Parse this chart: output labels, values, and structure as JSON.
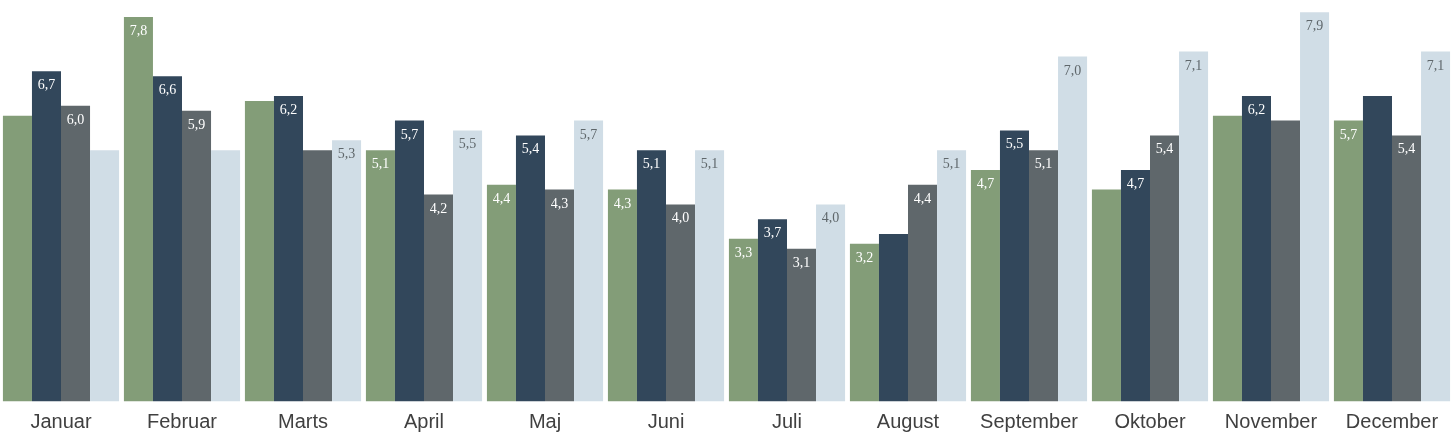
{
  "chart_data": {
    "type": "bar",
    "categories": [
      "Januar",
      "Februar",
      "Marts",
      "April",
      "Maj",
      "Juni",
      "Juli",
      "August",
      "September",
      "Oktober",
      "November",
      "December"
    ],
    "series": [
      {
        "color": "#839d78",
        "values": [
          5.8,
          7.8,
          6.1,
          5.1,
          4.4,
          4.3,
          3.3,
          3.2,
          4.7,
          4.3,
          5.8,
          5.7
        ],
        "value_labels": [
          null,
          "7,8",
          null,
          "5,1",
          "4,4",
          "4,3",
          "3,3",
          "3,2",
          "4,7",
          null,
          null,
          "5,7"
        ]
      },
      {
        "color": "#32475b",
        "values": [
          6.7,
          6.6,
          6.2,
          5.7,
          5.4,
          5.1,
          3.7,
          3.4,
          5.5,
          4.7,
          6.2,
          6.2
        ],
        "value_labels": [
          "6,7",
          "6,6",
          "6,2",
          "5,7",
          "5,4",
          "5,1",
          "3,7",
          null,
          "5,5",
          "4,7",
          "6,2",
          null
        ]
      },
      {
        "color": "#5f676b",
        "values": [
          6.0,
          5.9,
          5.1,
          4.2,
          4.3,
          4.0,
          3.1,
          4.4,
          5.1,
          5.4,
          5.7,
          5.4
        ],
        "value_labels": [
          "6,0",
          "5,9",
          null,
          "4,2",
          "4,3",
          "4,0",
          "3,1",
          "4,4",
          "5,1",
          "5,4",
          null,
          "5,4"
        ]
      },
      {
        "color": "#d0dde6",
        "values": [
          5.1,
          5.1,
          5.3,
          5.5,
          5.7,
          5.1,
          4.0,
          5.1,
          7.0,
          7.1,
          7.9,
          7.1
        ],
        "value_labels": [
          null,
          null,
          "5,3",
          "5,5",
          "5,7",
          "5,1",
          "4,0",
          "5,1",
          "7,0",
          "7,1",
          "7,9",
          "7,1"
        ]
      }
    ],
    "grid": false
  }
}
